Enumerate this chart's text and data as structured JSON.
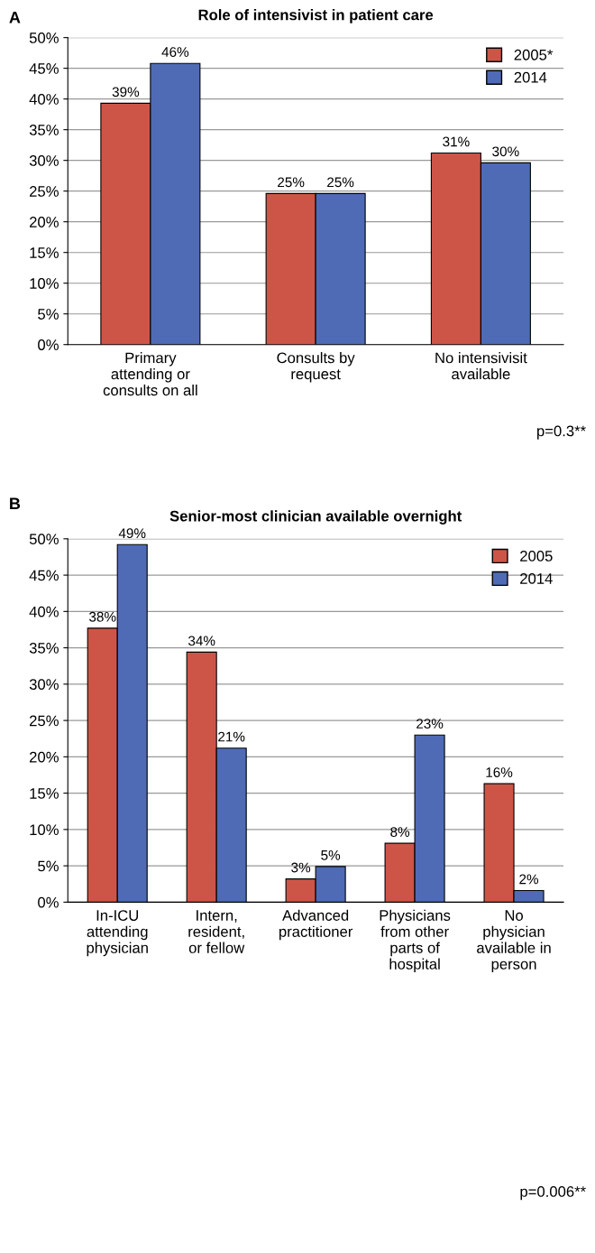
{
  "chart_data": [
    {
      "type": "bar",
      "title": "Role of intensivist in patient care",
      "categories": [
        "Primary\nattending or\nconsults on all",
        "Consults by\nrequest",
        "No intensivisit\navailable"
      ],
      "series": [
        {
          "name": "2005*",
          "color": "#cd5548",
          "values": [
            39.3,
            24.6,
            31.2
          ],
          "value_labels": [
            "39%",
            "25%",
            "31%"
          ]
        },
        {
          "name": "2014",
          "color": "#4f6bb5",
          "values": [
            45.8,
            24.6,
            29.6
          ],
          "value_labels": [
            "46%",
            "25%",
            "30%"
          ]
        }
      ],
      "ylim": [
        0,
        50
      ],
      "yticks": [
        {
          "value": 0,
          "label": "0%"
        },
        {
          "value": 5,
          "label": "5%"
        },
        {
          "value": 10,
          "label": "10%"
        },
        {
          "value": 15,
          "label": "15%"
        },
        {
          "value": 20,
          "label": "20%"
        },
        {
          "value": 25,
          "label": "25%"
        },
        {
          "value": 30,
          "label": "30%"
        },
        {
          "value": 35,
          "label": "35%"
        },
        {
          "value": 40,
          "label": "40%"
        },
        {
          "value": 45,
          "label": "45%"
        },
        {
          "value": 50,
          "label": "50%"
        }
      ],
      "grid": "y",
      "legend": "top right",
      "annotations": [
        "A",
        "p=0.3**"
      ]
    },
    {
      "type": "bar",
      "title": "Senior-most clinician available overnight",
      "categories": [
        "In-ICU\nattending\nphysician",
        "Intern,\nresident,\nor fellow",
        "Advanced\npractitioner",
        "Physicians\nfrom other\nparts of\nhospital",
        "No\nphysician\navailable in\nperson"
      ],
      "series": [
        {
          "name": "2005",
          "color": "#cd5548",
          "values": [
            37.7,
            34.4,
            3.2,
            8.1,
            16.3
          ],
          "value_labels": [
            "38%",
            "34%",
            "3%",
            "8%",
            "16%"
          ]
        },
        {
          "name": "2014",
          "color": "#4f6bb5",
          "values": [
            49.2,
            21.2,
            4.9,
            23,
            1.6
          ],
          "value_labels": [
            "49%",
            "21%",
            "5%",
            "23%",
            "2%"
          ]
        }
      ],
      "ylim": [
        0,
        50
      ],
      "yticks": [
        {
          "value": 0,
          "label": "0%"
        },
        {
          "value": 5,
          "label": "5%"
        },
        {
          "value": 10,
          "label": "10%"
        },
        {
          "value": 15,
          "label": "15%"
        },
        {
          "value": 20,
          "label": "20%"
        },
        {
          "value": 25,
          "label": "25%"
        },
        {
          "value": 30,
          "label": "30%"
        },
        {
          "value": 35,
          "label": "35%"
        },
        {
          "value": 40,
          "label": "40%"
        },
        {
          "value": 45,
          "label": "45%"
        },
        {
          "value": 50,
          "label": "50%"
        }
      ],
      "grid": "y",
      "legend": "top right",
      "annotations": [
        "B",
        "p=0.006**"
      ]
    }
  ]
}
